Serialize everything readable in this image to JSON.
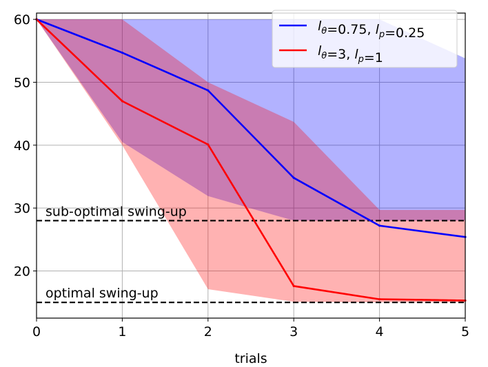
{
  "chart_data": {
    "type": "line",
    "xlabel": "trials",
    "ylabel": "",
    "xlim": [
      0,
      5
    ],
    "ylim": [
      12.5,
      61
    ],
    "x_ticks": [
      0,
      1,
      2,
      3,
      4,
      5
    ],
    "y_ticks": [
      20,
      30,
      40,
      50,
      60
    ],
    "grid": true,
    "legend_position": "top-right",
    "series": [
      {
        "name_parts": [
          {
            "text": "l",
            "style": "italic",
            "sub": "θ"
          },
          {
            "text": "=0.75, "
          },
          {
            "text": "l",
            "style": "italic",
            "sub": "p"
          },
          {
            "text": "=0.25"
          }
        ],
        "color": "#0000ff",
        "fill_color": "#0000ff",
        "fill_opacity": 0.3,
        "x": [
          0,
          1,
          2,
          3,
          4,
          5
        ],
        "mean": [
          60,
          54.7,
          48.7,
          34.8,
          27.2,
          25.4
        ],
        "upper": [
          60,
          60,
          60,
          60,
          60,
          53.8
        ],
        "lower": [
          60,
          40.5,
          31.9,
          28.0,
          28.0,
          28.0
        ]
      },
      {
        "name_parts": [
          {
            "text": "l",
            "style": "italic",
            "sub": "θ"
          },
          {
            "text": "=3, "
          },
          {
            "text": "l",
            "style": "italic",
            "sub": "p"
          },
          {
            "text": "=1"
          }
        ],
        "color": "#ff0000",
        "fill_color": "#ff0000",
        "fill_opacity": 0.3,
        "x": [
          0,
          1,
          2,
          3,
          4,
          5
        ],
        "mean": [
          60,
          47.0,
          40.1,
          17.6,
          15.5,
          15.3
        ],
        "upper": [
          60,
          60,
          50.0,
          43.7,
          29.7,
          29.7
        ],
        "lower": [
          60,
          40.0,
          17.1,
          15.1,
          15.0,
          15.0
        ]
      }
    ],
    "reference_lines": [
      {
        "y": 28,
        "label": "sub-optimal swing-up",
        "style": "dashed",
        "color": "#000000"
      },
      {
        "y": 15,
        "label": "optimal swing-up",
        "style": "dashed",
        "color": "#000000"
      }
    ]
  }
}
